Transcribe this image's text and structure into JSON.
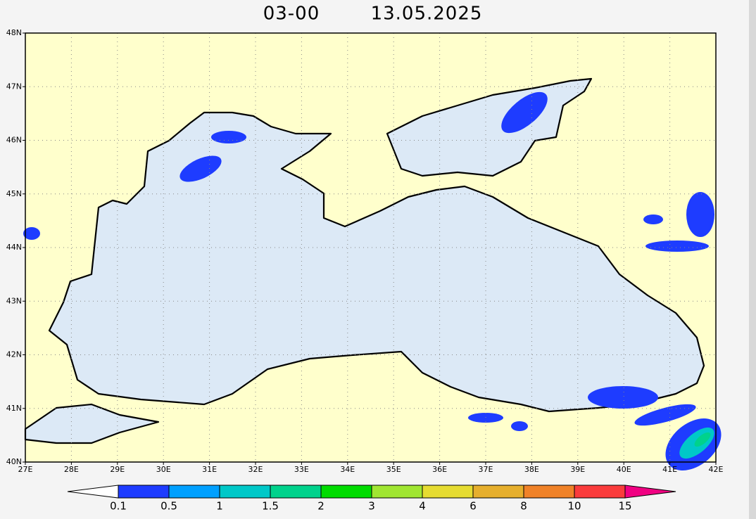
{
  "title": {
    "time": "03-00",
    "date": "13.05.2025"
  },
  "map": {
    "land_color": "#ffffcc",
    "water_color": "#dce9f6",
    "lon_labels": [
      "27E",
      "28E",
      "29E",
      "30E",
      "31E",
      "32E",
      "33E",
      "34E",
      "35E",
      "36E",
      "37E",
      "38E",
      "39E",
      "40E",
      "41E",
      "42E"
    ],
    "lat_labels": [
      "48N",
      "47N",
      "46N",
      "45N",
      "44N",
      "43N",
      "42N",
      "41N",
      "40N"
    ]
  },
  "colorbar": {
    "labels": [
      "0.1",
      "0.5",
      "1",
      "1.5",
      "2",
      "3",
      "4",
      "6",
      "8",
      "10",
      "15"
    ],
    "colors": [
      "#ffffff",
      "#1e3cff",
      "#00a0ff",
      "#00c8c8",
      "#00d28c",
      "#00dc00",
      "#a0e632",
      "#e6dc32",
      "#e6af2d",
      "#f08228",
      "#fa3c3c",
      "#f00082"
    ]
  }
}
